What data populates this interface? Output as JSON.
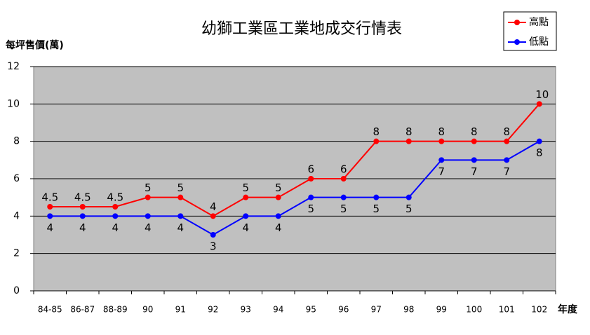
{
  "chart_data": {
    "type": "line",
    "title": "幼獅工業區工業地成交行情表",
    "y_label": "每坪售價(萬)",
    "x_label": "年度",
    "categories": [
      "84-85",
      "86-87",
      "88-89",
      "90",
      "91",
      "92",
      "93",
      "94",
      "95",
      "96",
      "97",
      "98",
      "99",
      "100",
      "101",
      "102"
    ],
    "series": [
      {
        "name": "高點",
        "color": "#ff0000",
        "values": [
          4.5,
          4.5,
          4.5,
          5,
          5,
          4,
          5,
          5,
          6,
          6,
          8,
          8,
          8,
          8,
          8,
          10
        ]
      },
      {
        "name": "低點",
        "color": "#0000ff",
        "values": [
          4,
          4,
          4,
          4,
          4,
          3,
          4,
          4,
          5,
          5,
          5,
          5,
          7,
          7,
          7,
          8
        ]
      }
    ],
    "ylim": [
      0,
      12
    ],
    "yticks": [
      0,
      2,
      4,
      6,
      8,
      10,
      12
    ],
    "grid": true,
    "legend": "top-right",
    "plot_background": "#c0c0c0"
  }
}
